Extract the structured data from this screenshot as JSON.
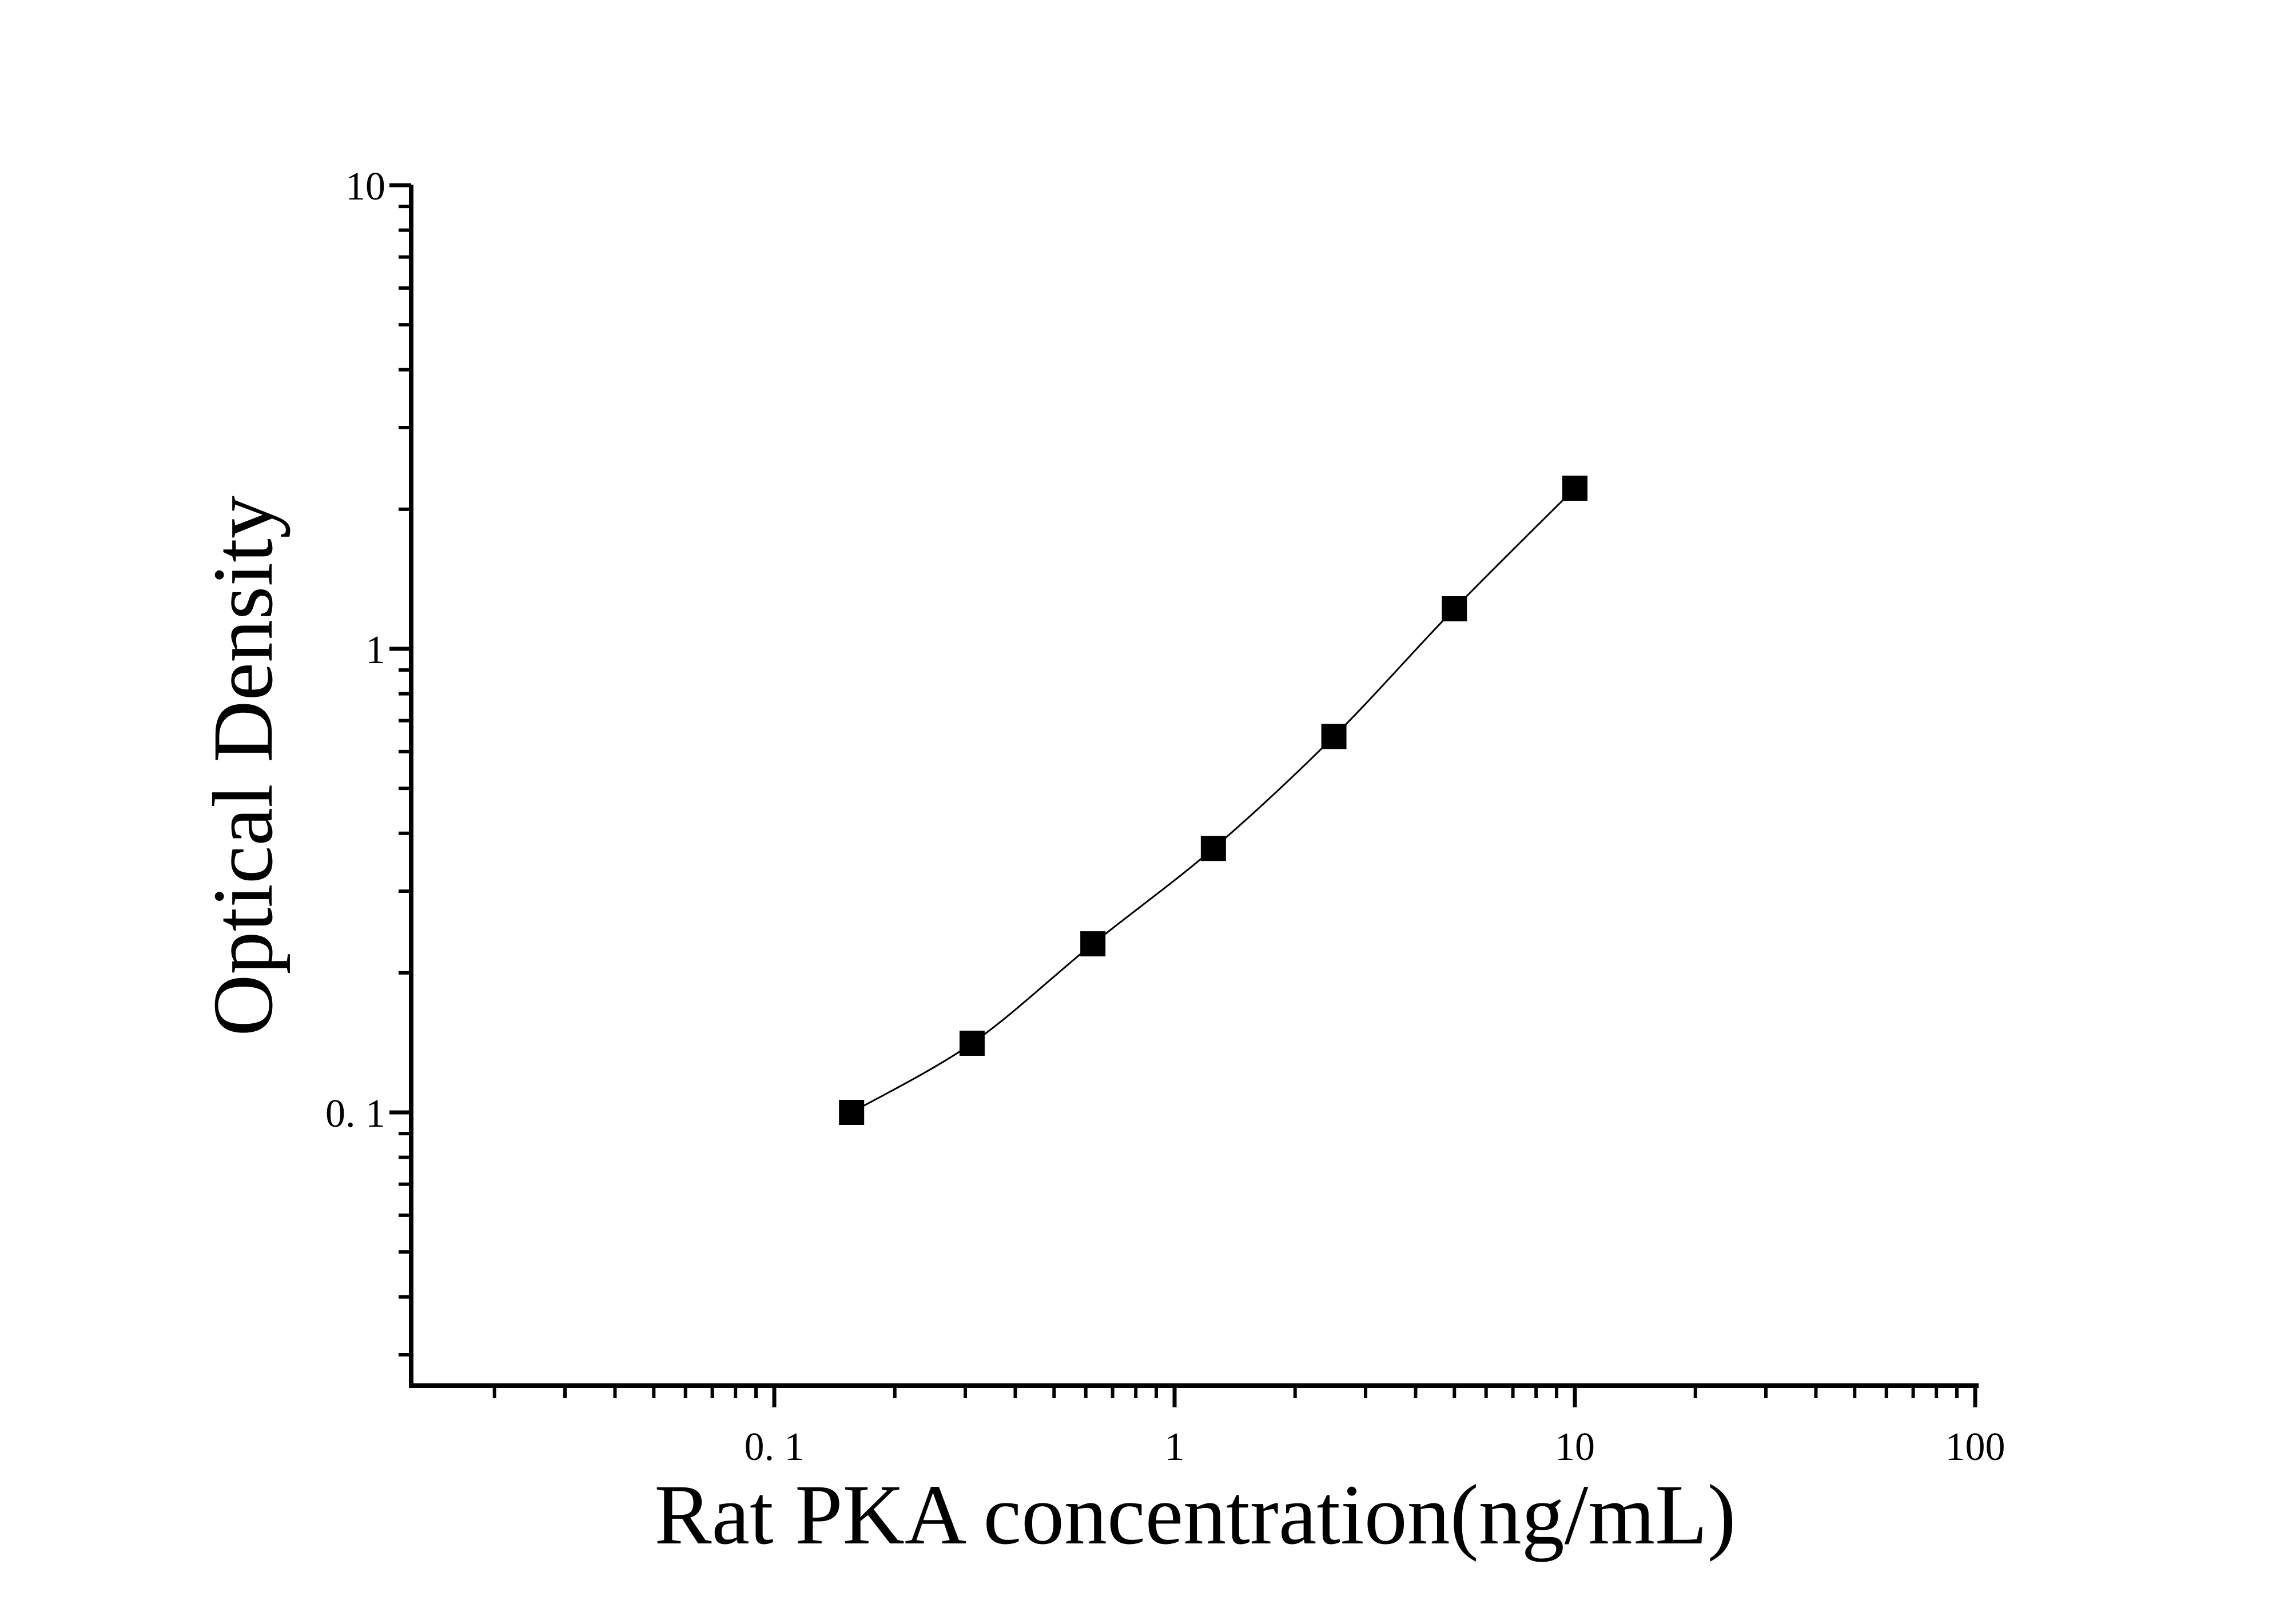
{
  "chart_data": {
    "type": "scatter",
    "title": "",
    "xlabel": "Rat PKA concentration(ng/mL)",
    "ylabel": "Optical Density",
    "xscale": "log",
    "yscale": "log",
    "xlim": [
      0.0125,
      100
    ],
    "ylim": [
      0.025,
      10
    ],
    "xticks": [
      {
        "value": 0.1,
        "label": "0. 1"
      },
      {
        "value": 1,
        "label": "1"
      },
      {
        "value": 10,
        "label": "10"
      },
      {
        "value": 100,
        "label": "100"
      }
    ],
    "yticks": [
      {
        "value": 0.1,
        "label": "0. 1"
      },
      {
        "value": 1,
        "label": "1"
      },
      {
        "value": 10,
        "label": "10"
      }
    ],
    "grid": false,
    "marker": "square",
    "fit_curve": true,
    "colors": {
      "marker": "#000000",
      "line": "#000000"
    },
    "points": [
      {
        "x": 0.156,
        "y": 0.1
      },
      {
        "x": 0.312,
        "y": 0.141
      },
      {
        "x": 0.625,
        "y": 0.231
      },
      {
        "x": 1.25,
        "y": 0.371
      },
      {
        "x": 2.5,
        "y": 0.647
      },
      {
        "x": 5,
        "y": 1.22
      },
      {
        "x": 10,
        "y": 2.22
      }
    ]
  }
}
